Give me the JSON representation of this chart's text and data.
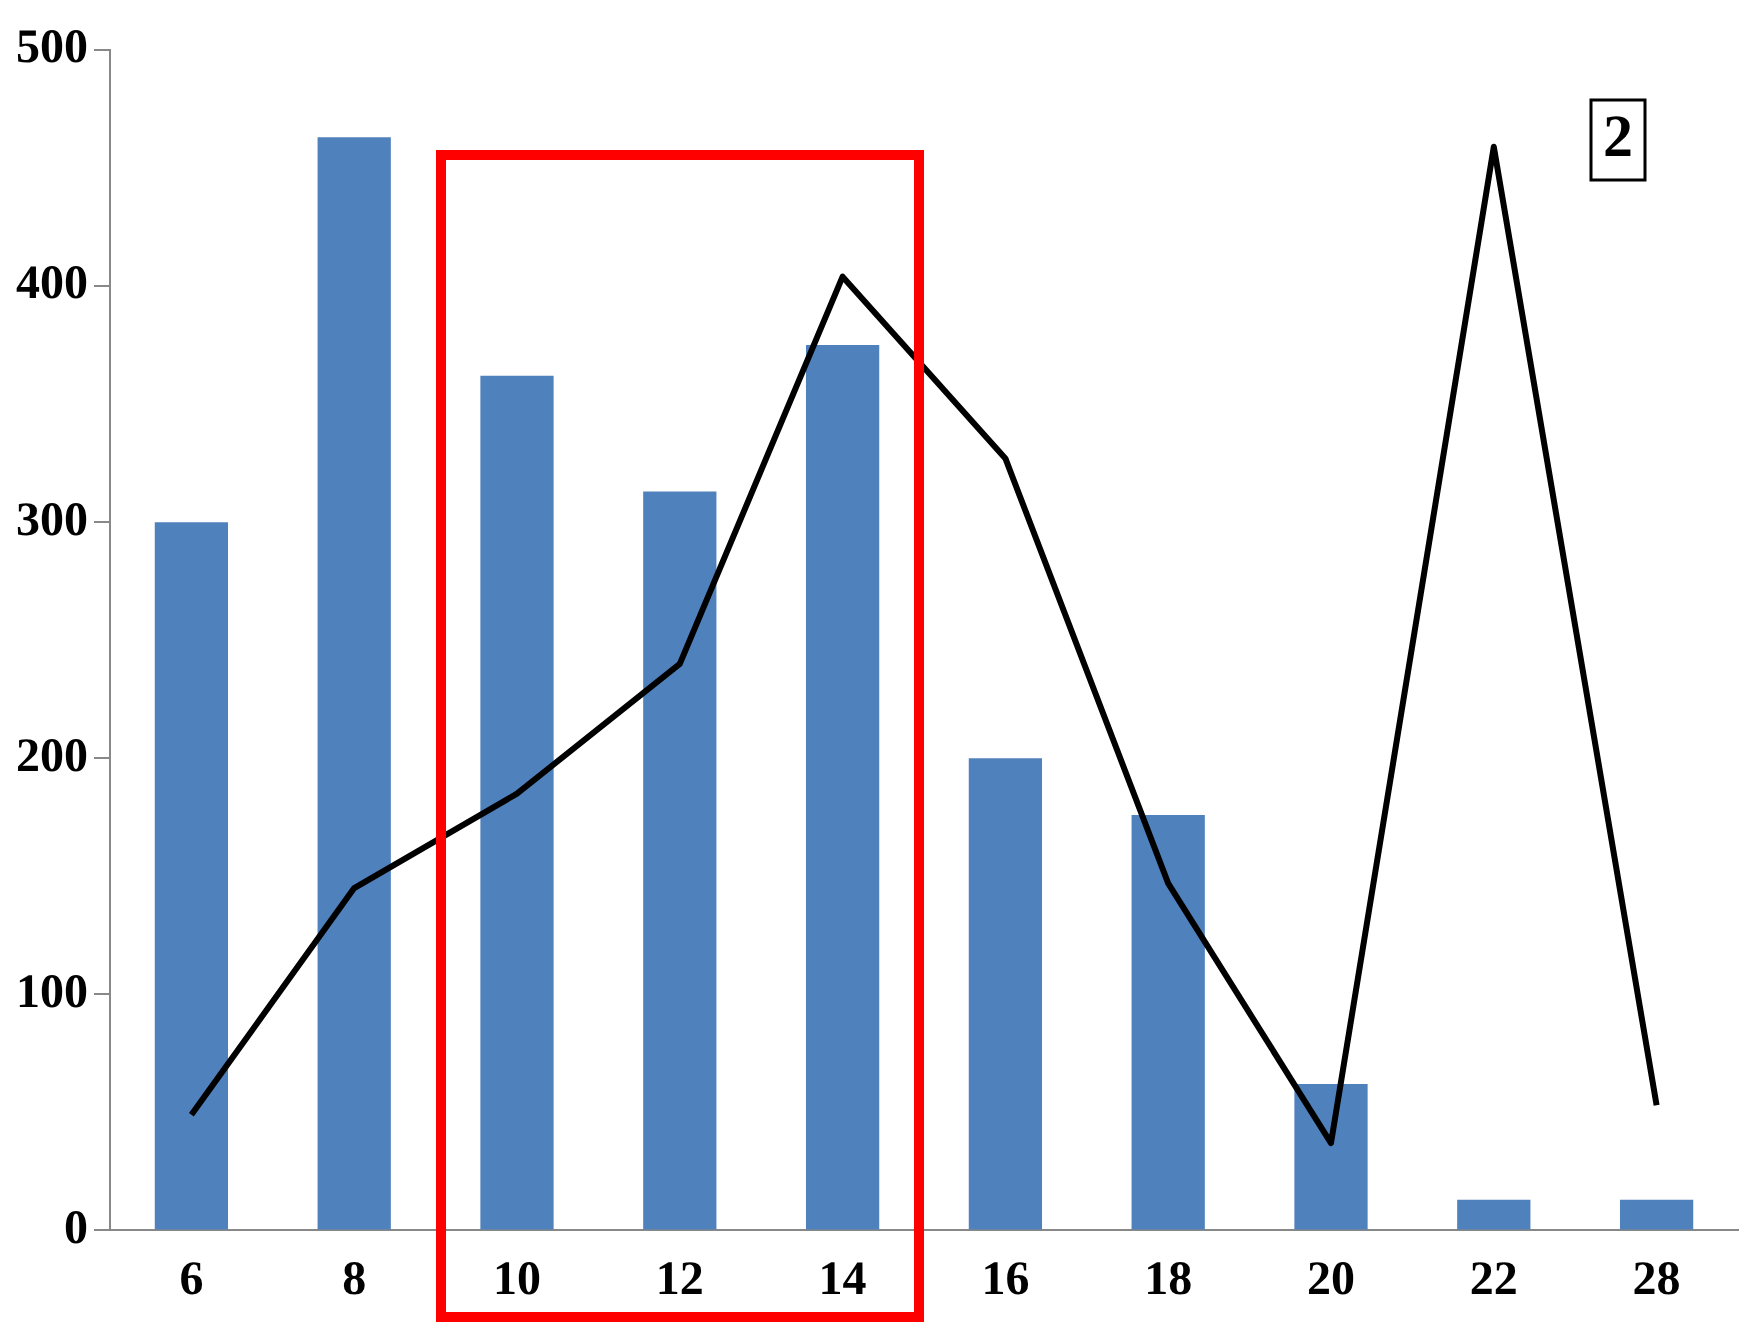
{
  "chart_data": {
    "type": "bar",
    "categories": [
      "6",
      "8",
      "10",
      "12",
      "14",
      "16",
      "18",
      "20",
      "22",
      "28"
    ],
    "series": [
      {
        "color": "#4f81bd",
        "values": [
          300,
          463,
          362,
          313,
          375,
          200,
          176,
          62,
          13,
          13
        ]
      },
      {
        "type": "line",
        "color": "#000000",
        "values": [
          49,
          145,
          185,
          240,
          404,
          327,
          147,
          37,
          459,
          53
        ]
      }
    ],
    "ylim": [
      0,
      500
    ],
    "yticks": [
      0,
      100,
      200,
      300,
      400,
      500
    ],
    "grid": false,
    "legend": false,
    "marker": "none",
    "line_style": "solid",
    "annotations": [
      "2"
    ]
  }
}
